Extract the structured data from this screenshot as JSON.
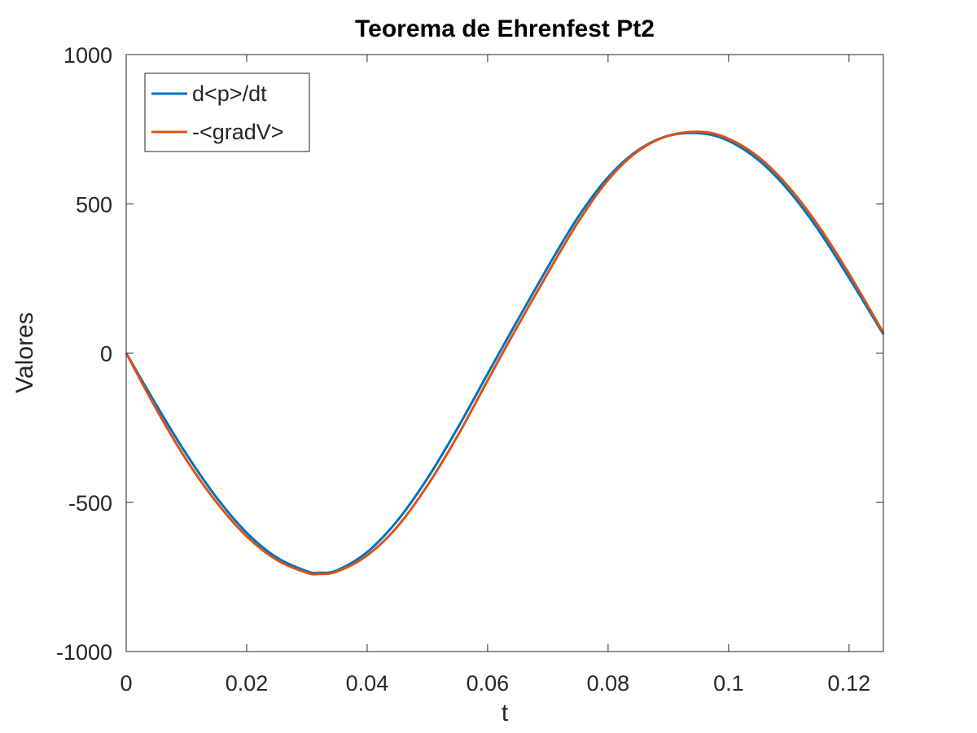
{
  "chart_data": {
    "type": "line",
    "title": "Teorema de Ehrenfest Pt2",
    "xlabel": "t",
    "ylabel": "Valores",
    "xlim": [
      0,
      0.1257
    ],
    "ylim": [
      -1000,
      1000
    ],
    "xticks": [
      0,
      0.02,
      0.04,
      0.06,
      0.08,
      0.1,
      0.12
    ],
    "xtick_labels": [
      "0",
      "0.02",
      "0.04",
      "0.06",
      "0.08",
      "0.1",
      "0.12"
    ],
    "yticks": [
      -1000,
      -500,
      0,
      500,
      1000
    ],
    "ytick_labels": [
      "-1000",
      "-500",
      "0",
      "500",
      "1000"
    ],
    "grid": false,
    "box": true,
    "legend_position": "top-left",
    "series": [
      {
        "name": "d<p>/dt",
        "color": "#0072BD",
        "x": [
          0,
          0.005,
          0.01,
          0.015,
          0.02,
          0.025,
          0.03,
          0.032,
          0.035,
          0.04,
          0.045,
          0.05,
          0.055,
          0.06,
          0.064,
          0.07,
          0.075,
          0.08,
          0.085,
          0.09,
          0.0955,
          0.1,
          0.105,
          0.11,
          0.115,
          0.12,
          0.1257
        ],
        "y": [
          0,
          -174,
          -339,
          -484,
          -602,
          -685,
          -731,
          -736,
          -728,
          -667,
          -562,
          -420,
          -252,
          -70,
          75,
          288,
          455,
          589,
          680,
          728,
          736,
          711,
          646,
          544,
          410,
          252,
          63
        ]
      },
      {
        "name": "-<gradV>",
        "color": "#D95319",
        "x": [
          0,
          0.005,
          0.01,
          0.015,
          0.02,
          0.025,
          0.03,
          0.032,
          0.035,
          0.04,
          0.045,
          0.05,
          0.055,
          0.06,
          0.064,
          0.07,
          0.075,
          0.08,
          0.085,
          0.09,
          0.0955,
          0.1,
          0.105,
          0.11,
          0.115,
          0.12,
          0.1257
        ],
        "y": [
          0,
          -188,
          -358,
          -500,
          -614,
          -693,
          -736,
          -740,
          -732,
          -678,
          -582,
          -444,
          -278,
          -92,
          55,
          268,
          438,
          580,
          677,
          728,
          741,
          718,
          656,
          556,
          424,
          266,
          68
        ]
      }
    ]
  }
}
